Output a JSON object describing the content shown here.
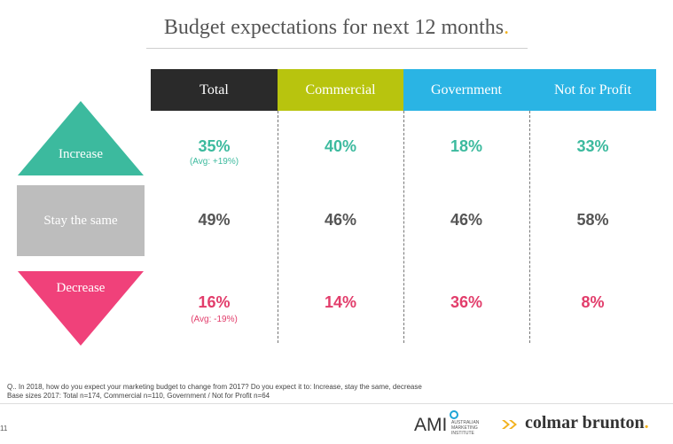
{
  "title": {
    "text": "Budget expectations for next 12 months",
    "dot": "."
  },
  "columns": [
    {
      "label": "Total",
      "bg": "#2a2a2a",
      "fg": "#ffffff"
    },
    {
      "label": "Commercial",
      "bg": "#b8c40e",
      "fg": "#ffffff"
    },
    {
      "label": "Government",
      "bg": "#2ab4e4",
      "fg": "#ffffff"
    },
    {
      "label": "Not for Profit",
      "bg": "#2ab4e4",
      "fg": "#ffffff"
    }
  ],
  "rows": {
    "increase": {
      "label": "Increase",
      "color": "#3cba9e",
      "values": [
        "35%",
        "40%",
        "18%",
        "33%"
      ],
      "total_avg": "(Avg: +19%)"
    },
    "stay": {
      "label": "Stay the same",
      "color": "#bdbdbd",
      "values": [
        "49%",
        "46%",
        "46%",
        "58%"
      ]
    },
    "decrease": {
      "label": "Decrease",
      "color": "#f0417a",
      "values": [
        "16%",
        "14%",
        "36%",
        "8%"
      ],
      "total_avg": "(Avg: -19%)"
    }
  },
  "footnotes": {
    "question": "Q.. In 2018, how do you expect your marketing budget to change from 2017? Do you expect it to: Increase, stay the same, decrease",
    "base": "Base sizes 2017: Total n=174, Commercial n=110, Government / Not for Profit n=64"
  },
  "footer": {
    "page": "11",
    "ami_logo": "AMI",
    "ami_sub": [
      "AUSTRALIAN",
      "MARKETING",
      "INSTITUTE"
    ],
    "cb_logo": "colmar brunton",
    "cb_dot": "."
  }
}
